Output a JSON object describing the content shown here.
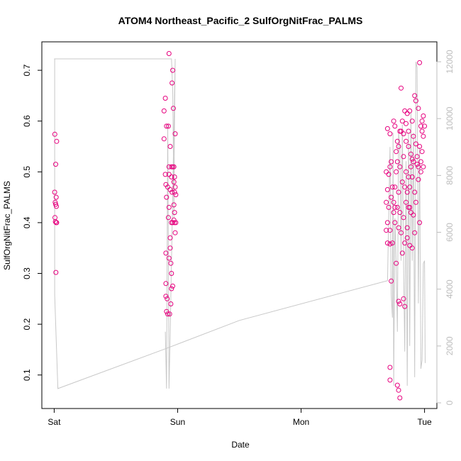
{
  "chart_data": {
    "type": "scatter",
    "title": "ATOM4 Northeast_Pacific_2 SulfOrgNitFrac_PALMS",
    "xlabel": "Date",
    "ylabel": "SulfOrgNitFrac_PALMS",
    "x_ticks": [
      {
        "label": "Sat",
        "value": 0
      },
      {
        "label": "Sun",
        "value": 1
      },
      {
        "label": "Mon",
        "value": 2
      },
      {
        "label": "Tue",
        "value": 3
      }
    ],
    "y_ticks": [
      0.1,
      0.2,
      0.3,
      0.4,
      0.5,
      0.6,
      0.7
    ],
    "y2_ticks": [
      0,
      2000,
      4000,
      6000,
      8000,
      10000,
      12000
    ],
    "xlim": [
      -0.1,
      3.1
    ],
    "ylim": [
      0.034,
      0.756
    ],
    "y2lim": [
      -200,
      12700
    ],
    "grid": false,
    "point_color": "#e6007e",
    "secondary_color": "#c8c8c8",
    "series": [
      {
        "type": "scatter",
        "points": [
          [
            0.005,
            0.574
          ],
          [
            0.012,
            0.515
          ],
          [
            0.02,
            0.56
          ],
          [
            0.004,
            0.46
          ],
          [
            0.016,
            0.45
          ],
          [
            0.008,
            0.44
          ],
          [
            0.012,
            0.436
          ],
          [
            0.018,
            0.432
          ],
          [
            0.006,
            0.41
          ],
          [
            0.01,
            0.402
          ],
          [
            0.016,
            0.4
          ],
          [
            0.02,
            0.4
          ],
          [
            0.014,
            0.302
          ],
          [
            0.9,
            0.645
          ],
          [
            0.89,
            0.62
          ],
          [
            0.91,
            0.59
          ],
          [
            0.925,
            0.59
          ],
          [
            0.89,
            0.565
          ],
          [
            0.94,
            0.55
          ],
          [
            0.93,
            0.51
          ],
          [
            0.95,
            0.51
          ],
          [
            0.96,
            0.51
          ],
          [
            0.9,
            0.495
          ],
          [
            0.93,
            0.495
          ],
          [
            0.95,
            0.49
          ],
          [
            0.905,
            0.475
          ],
          [
            0.92,
            0.47
          ],
          [
            0.94,
            0.465
          ],
          [
            0.91,
            0.45
          ],
          [
            0.955,
            0.46
          ],
          [
            0.93,
            0.43
          ],
          [
            0.925,
            0.41
          ],
          [
            0.95,
            0.4
          ],
          [
            0.96,
            0.4
          ],
          [
            0.905,
            0.34
          ],
          [
            0.93,
            0.33
          ],
          [
            0.945,
            0.32
          ],
          [
            0.94,
            0.35
          ],
          [
            0.905,
            0.28
          ],
          [
            0.95,
            0.27
          ],
          [
            0.915,
            0.25
          ],
          [
            0.945,
            0.24
          ],
          [
            0.91,
            0.225
          ],
          [
            0.92,
            0.22
          ],
          [
            0.935,
            0.22
          ],
          [
            0.905,
            0.255
          ],
          [
            0.94,
            0.37
          ],
          [
            0.93,
            0.733
          ],
          [
            0.96,
            0.7
          ],
          [
            0.955,
            0.675
          ],
          [
            0.965,
            0.625
          ],
          [
            0.98,
            0.575
          ],
          [
            0.97,
            0.51
          ],
          [
            0.975,
            0.49
          ],
          [
            0.97,
            0.48
          ],
          [
            0.98,
            0.47
          ],
          [
            0.975,
            0.46
          ],
          [
            0.985,
            0.455
          ],
          [
            0.97,
            0.435
          ],
          [
            0.975,
            0.42
          ],
          [
            0.97,
            0.405
          ],
          [
            0.975,
            0.4
          ],
          [
            0.985,
            0.4
          ],
          [
            0.98,
            0.38
          ],
          [
            0.95,
            0.3
          ],
          [
            0.96,
            0.275
          ],
          [
            2.7,
            0.585
          ],
          [
            2.72,
            0.575
          ],
          [
            2.69,
            0.5
          ],
          [
            2.71,
            0.495
          ],
          [
            2.73,
            0.52
          ],
          [
            2.72,
            0.51
          ],
          [
            2.7,
            0.465
          ],
          [
            2.69,
            0.44
          ],
          [
            2.71,
            0.43
          ],
          [
            2.73,
            0.45
          ],
          [
            2.7,
            0.4
          ],
          [
            2.72,
            0.385
          ],
          [
            2.69,
            0.385
          ],
          [
            2.7,
            0.36
          ],
          [
            2.72,
            0.358
          ],
          [
            2.74,
            0.36
          ],
          [
            2.73,
            0.285
          ],
          [
            2.72,
            0.115
          ],
          [
            2.72,
            0.09
          ],
          [
            2.75,
            0.6
          ],
          [
            2.76,
            0.59
          ],
          [
            2.78,
            0.56
          ],
          [
            2.79,
            0.55
          ],
          [
            2.8,
            0.58
          ],
          [
            2.82,
            0.6
          ],
          [
            2.84,
            0.62
          ],
          [
            2.86,
            0.615
          ],
          [
            2.88,
            0.62
          ],
          [
            2.9,
            0.6
          ],
          [
            2.92,
            0.65
          ],
          [
            2.93,
            0.64
          ],
          [
            2.95,
            0.625
          ],
          [
            2.97,
            0.59
          ],
          [
            2.98,
            0.58
          ],
          [
            2.99,
            0.57
          ],
          [
            2.96,
            0.715
          ],
          [
            2.81,
            0.665
          ],
          [
            2.77,
            0.54
          ],
          [
            2.78,
            0.52
          ],
          [
            2.8,
            0.51
          ],
          [
            2.83,
            0.53
          ],
          [
            2.85,
            0.5
          ],
          [
            2.87,
            0.49
          ],
          [
            2.89,
            0.51
          ],
          [
            2.91,
            0.52
          ],
          [
            2.94,
            0.53
          ],
          [
            2.96,
            0.55
          ],
          [
            2.98,
            0.54
          ],
          [
            2.76,
            0.47
          ],
          [
            2.79,
            0.46
          ],
          [
            2.82,
            0.48
          ],
          [
            2.84,
            0.47
          ],
          [
            2.86,
            0.46
          ],
          [
            2.88,
            0.47
          ],
          [
            2.9,
            0.49
          ],
          [
            2.92,
            0.46
          ],
          [
            2.95,
            0.485
          ],
          [
            2.97,
            0.5
          ],
          [
            2.99,
            0.51
          ],
          [
            2.75,
            0.44
          ],
          [
            2.78,
            0.43
          ],
          [
            2.8,
            0.42
          ],
          [
            2.83,
            0.41
          ],
          [
            2.85,
            0.44
          ],
          [
            2.87,
            0.43
          ],
          [
            2.89,
            0.42
          ],
          [
            2.91,
            0.415
          ],
          [
            2.93,
            0.44
          ],
          [
            2.96,
            0.4
          ],
          [
            2.76,
            0.4
          ],
          [
            2.79,
            0.39
          ],
          [
            2.81,
            0.38
          ],
          [
            2.84,
            0.36
          ],
          [
            2.86,
            0.37
          ],
          [
            2.88,
            0.355
          ],
          [
            2.9,
            0.35
          ],
          [
            2.92,
            0.38
          ],
          [
            2.77,
            0.32
          ],
          [
            2.79,
            0.245
          ],
          [
            2.8,
            0.24
          ],
          [
            2.82,
            0.34
          ],
          [
            2.83,
            0.25
          ],
          [
            2.84,
            0.235
          ],
          [
            2.78,
            0.08
          ],
          [
            2.79,
            0.07
          ],
          [
            2.8,
            0.055
          ],
          [
            2.74,
            0.47
          ],
          [
            2.76,
            0.43
          ],
          [
            2.75,
            0.42
          ],
          [
            2.77,
            0.5
          ],
          [
            2.81,
            0.58
          ],
          [
            2.83,
            0.575
          ],
          [
            2.85,
            0.56
          ],
          [
            2.87,
            0.55
          ],
          [
            2.89,
            0.535
          ],
          [
            2.9,
            0.525
          ],
          [
            2.94,
            0.515
          ],
          [
            2.95,
            0.51
          ],
          [
            2.97,
            0.52
          ],
          [
            2.98,
            0.6
          ],
          [
            2.99,
            0.61
          ],
          [
            3.0,
            0.59
          ],
          [
            2.85,
            0.595
          ],
          [
            2.87,
            0.58
          ],
          [
            2.91,
            0.57
          ],
          [
            2.93,
            0.555
          ],
          [
            2.88,
            0.43
          ],
          [
            2.86,
            0.39
          ]
        ]
      },
      {
        "type": "line",
        "axis": "right",
        "name": "",
        "points": [
          [
            0.0,
            12100
          ],
          [
            0.004,
            12100
          ],
          [
            0.004,
            3800
          ],
          [
            0.03,
            500
          ],
          [
            0.9,
            1900
          ],
          [
            1.5,
            2900
          ],
          [
            2.7,
            4300
          ],
          [
            2.72,
            9000
          ],
          [
            2.73,
            3800
          ],
          [
            2.74,
            3000
          ],
          [
            2.745,
            9500
          ],
          [
            2.75,
            600
          ],
          [
            2.76,
            6500
          ],
          [
            2.77,
            4900
          ],
          [
            2.78,
            2500
          ],
          [
            2.79,
            9500
          ],
          [
            2.8,
            9000
          ],
          [
            2.81,
            5000
          ],
          [
            2.82,
            9800
          ],
          [
            2.83,
            4900
          ],
          [
            2.84,
            1800
          ],
          [
            2.85,
            8500
          ],
          [
            2.86,
            600
          ],
          [
            2.87,
            9500
          ],
          [
            2.88,
            2000
          ],
          [
            2.89,
            10200
          ],
          [
            2.9,
            5000
          ],
          [
            2.91,
            9500
          ],
          [
            2.92,
            900
          ],
          [
            2.93,
            12000
          ],
          [
            2.94,
            11800
          ],
          [
            2.95,
            3500
          ],
          [
            2.96,
            9000
          ],
          [
            2.97,
            1200
          ],
          [
            2.98,
            1500
          ],
          [
            2.99,
            4900
          ],
          [
            3.0,
            5000
          ],
          [
            3.005,
            1400
          ]
        ]
      },
      {
        "type": "line",
        "axis": "right",
        "name": "",
        "points": [
          [
            0.0,
            12100
          ],
          [
            0.95,
            12100
          ],
          [
            0.96,
            11000
          ],
          [
            0.965,
            9000
          ],
          [
            0.97,
            6500
          ],
          [
            0.975,
            10000
          ],
          [
            0.98,
            12100
          ],
          [
            0.95,
            5000
          ],
          [
            0.94,
            2500
          ],
          [
            0.93,
            500
          ],
          [
            0.92,
            9800
          ],
          [
            0.91,
            500
          ],
          [
            0.9,
            2500
          ]
        ]
      }
    ]
  }
}
